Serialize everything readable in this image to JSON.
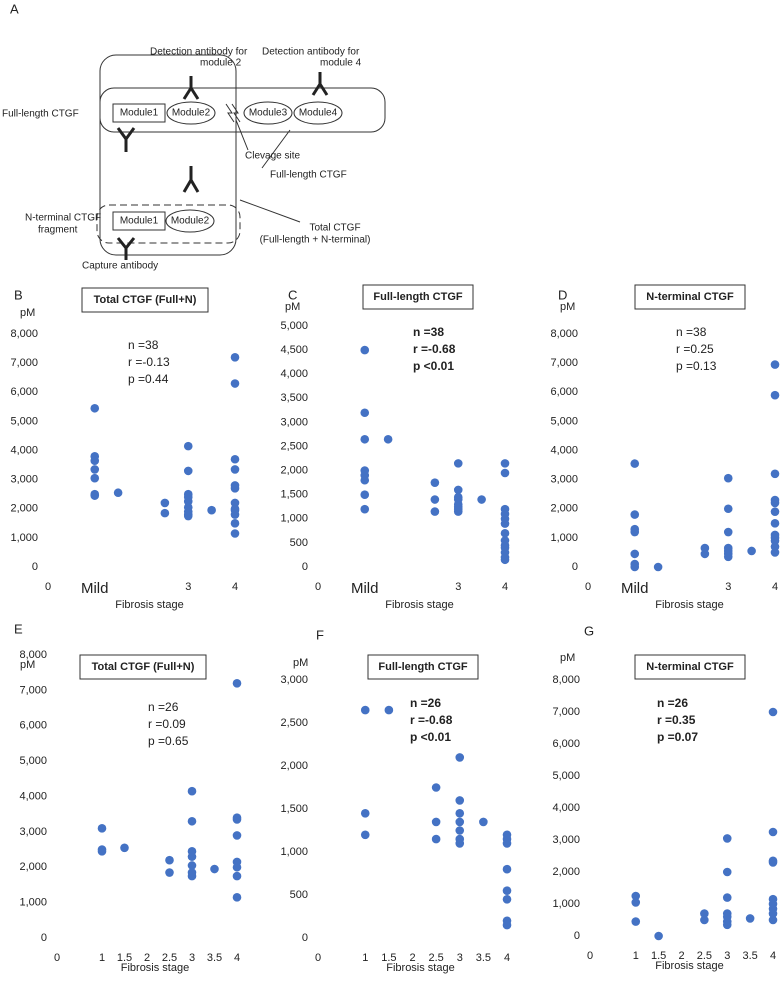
{
  "diagram": {
    "panel_label": "A",
    "detection_2": [
      "Detection antibody for",
      "module 2"
    ],
    "detection_4": [
      "Detection antibody for",
      "module 4"
    ],
    "full_length_left": "Full-length CTGF",
    "modules_full": [
      "Module1",
      "Module2",
      "Module3",
      "Module4"
    ],
    "clevage": "Clevage site",
    "full_length_right": "Full-length CTGF",
    "n_terminal": [
      "N-terminal CTGF",
      "fragment"
    ],
    "modules_n": [
      "Module1",
      "Module2"
    ],
    "total": [
      "Total CTGF",
      "(Full-length + N-terminal)"
    ],
    "capture": "Capture antibody"
  },
  "chart_data": [
    {
      "type": "scatter",
      "panel_label": "B",
      "title": "Total CTGF (Full+N)",
      "y_label": "pM",
      "x_label": "Fibrosis stage",
      "annotations": [
        "n =38",
        "r =-0.13",
        "p =0.44"
      ],
      "annotation_bold": false,
      "color": "#4472c4",
      "x": [
        1,
        1,
        1,
        1,
        1,
        1,
        1,
        1.5,
        2.5,
        2.5,
        3,
        3,
        3,
        3,
        3,
        3,
        3,
        3,
        3,
        3.5,
        4,
        4,
        4,
        4,
        4,
        4,
        4,
        4,
        4,
        4,
        4,
        4
      ],
      "values": [
        5450,
        3800,
        3650,
        3350,
        3050,
        2500,
        2450,
        2550,
        2200,
        1850,
        4150,
        3300,
        2500,
        2400,
        2250,
        2050,
        1900,
        1800,
        1750,
        1950,
        7200,
        6300,
        3700,
        3350,
        2800,
        2700,
        2200,
        2000,
        1950,
        1800,
        1500,
        1150
      ],
      "xlim": [
        0,
        4
      ],
      "xticks": [
        0,
        {
          "value": 1,
          "label": "Mild"
        },
        3,
        4
      ],
      "ylim": [
        0,
        8000
      ],
      "yticks": [
        0,
        {
          "value": 1000,
          "label": "1,000"
        },
        {
          "value": 2000,
          "label": "2,000"
        },
        {
          "value": 3000,
          "label": "3,000"
        },
        {
          "value": 4000,
          "label": "4,000"
        },
        {
          "value": 5000,
          "label": "5,000"
        },
        {
          "value": 6000,
          "label": "6,000"
        },
        {
          "value": 7000,
          "label": "7,000"
        },
        {
          "value": 8000,
          "label": "8,000"
        }
      ],
      "grid": false
    },
    {
      "type": "scatter",
      "panel_label": "C",
      "title": "Full-length CTGF",
      "y_label": "pM",
      "x_label": "Fibrosis stage",
      "annotations": [
        "n =38",
        "r =-0.68",
        "p <0.01"
      ],
      "annotation_bold": true,
      "color": "#4472c4",
      "x": [
        1,
        1,
        1,
        1,
        1,
        1,
        1,
        1,
        1.5,
        2.5,
        2.5,
        2.5,
        3,
        3,
        3,
        3,
        3,
        3,
        3,
        3,
        3.5,
        4,
        4,
        4,
        4,
        4,
        4,
        4,
        4,
        4,
        4,
        4,
        4,
        4
      ],
      "values": [
        4500,
        3200,
        2650,
        2000,
        1900,
        1800,
        1500,
        1200,
        2650,
        1750,
        1400,
        1150,
        2150,
        1600,
        1450,
        1400,
        1300,
        1250,
        1200,
        1150,
        1400,
        2150,
        1950,
        1200,
        1100,
        1000,
        900,
        700,
        550,
        450,
        400,
        300,
        200,
        150
      ],
      "xlim": [
        0,
        4
      ],
      "xticks": [
        0,
        {
          "value": 1,
          "label": "Mild"
        },
        3,
        4
      ],
      "ylim": [
        0,
        5000
      ],
      "yticks": [
        0,
        500,
        {
          "value": 1000,
          "label": "1,000"
        },
        {
          "value": 1500,
          "label": "1,500"
        },
        {
          "value": 2000,
          "label": "2,000"
        },
        {
          "value": 2500,
          "label": "2,500"
        },
        {
          "value": 3000,
          "label": "3,000"
        },
        {
          "value": 3500,
          "label": "3,500"
        },
        {
          "value": 4000,
          "label": "4,000"
        },
        {
          "value": 4500,
          "label": "4,500"
        },
        {
          "value": 5000,
          "label": "5,000"
        }
      ],
      "grid": false
    },
    {
      "type": "scatter",
      "panel_label": "D",
      "title": "N-terminal CTGF",
      "y_label": "pM",
      "x_label": "Fibrosis stage",
      "annotations": [
        "n =38",
        "r =0.25",
        "p =0.13"
      ],
      "annotation_bold": false,
      "color": "#4472c4",
      "x": [
        1,
        1,
        1,
        1,
        1,
        1,
        1,
        1.5,
        2.5,
        2.5,
        3,
        3,
        3,
        3,
        3,
        3,
        3,
        3.5,
        4,
        4,
        4,
        4,
        4,
        4,
        4,
        4,
        4,
        4,
        4,
        4
      ],
      "values": [
        3550,
        1800,
        1300,
        1200,
        450,
        100,
        0,
        0,
        650,
        450,
        3050,
        2000,
        1200,
        650,
        550,
        450,
        350,
        550,
        6950,
        5900,
        3200,
        2300,
        2200,
        1900,
        1500,
        1100,
        1000,
        900,
        700,
        500
      ],
      "xlim": [
        0,
        4
      ],
      "xticks": [
        0,
        {
          "value": 1,
          "label": "Mild"
        },
        3,
        4
      ],
      "ylim": [
        0,
        8000
      ],
      "yticks": [
        0,
        {
          "value": 1000,
          "label": "1,000"
        },
        {
          "value": 2000,
          "label": "2,000"
        },
        {
          "value": 3000,
          "label": "3,000"
        },
        {
          "value": 4000,
          "label": "4,000"
        },
        {
          "value": 5000,
          "label": "5,000"
        },
        {
          "value": 6000,
          "label": "6,000"
        },
        {
          "value": 7000,
          "label": "7,000"
        },
        {
          "value": 8000,
          "label": "8,000"
        }
      ],
      "grid": false
    },
    {
      "type": "scatter",
      "panel_label": "E",
      "title": "Total CTGF (Full+N)",
      "y_label": "pM",
      "x_label": "Fibrosis stage",
      "annotations": [
        "n =26",
        "r =0.09",
        "p =0.65"
      ],
      "annotation_bold": false,
      "color": "#4472c4",
      "x": [
        1,
        1,
        1,
        1.5,
        2.5,
        2.5,
        3,
        3,
        3,
        3,
        3,
        3,
        3,
        3.5,
        4,
        4,
        4,
        4,
        4,
        4,
        4,
        4
      ],
      "values": [
        3100,
        2500,
        2450,
        2550,
        2200,
        1850,
        4150,
        3300,
        2450,
        2300,
        2050,
        1850,
        1750,
        1950,
        7200,
        3400,
        3350,
        2900,
        2150,
        2000,
        1750,
        1150
      ],
      "xlim": [
        0,
        4
      ],
      "xticks": [
        0,
        1,
        1.5,
        2,
        2.5,
        3,
        3.5,
        4
      ],
      "ylim": [
        0,
        8000
      ],
      "yticks": [
        0,
        {
          "value": 1000,
          "label": "1,000"
        },
        {
          "value": 2000,
          "label": "2,000"
        },
        {
          "value": 3000,
          "label": "3,000"
        },
        {
          "value": 4000,
          "label": "4,000"
        },
        {
          "value": 5000,
          "label": "5,000"
        },
        {
          "value": 6000,
          "label": "6,000"
        },
        {
          "value": 7000,
          "label": "7,000"
        },
        {
          "value": 8000,
          "label": "8,000"
        }
      ],
      "grid": false
    },
    {
      "type": "scatter",
      "panel_label": "F",
      "title": "Full-length CTGF",
      "y_label": "pM",
      "x_label": "Fibrosis stage",
      "annotations": [
        "n =26",
        "r =-0.68",
        "p <0.01"
      ],
      "annotation_bold": true,
      "color": "#4472c4",
      "x": [
        1,
        1,
        1,
        1.5,
        2.5,
        2.5,
        2.5,
        3,
        3,
        3,
        3,
        3,
        3,
        3,
        3.5,
        4,
        4,
        4,
        4,
        4,
        4,
        4,
        4
      ],
      "values": [
        2650,
        1450,
        1200,
        2650,
        1750,
        1350,
        1150,
        2100,
        1600,
        1450,
        1350,
        1250,
        1150,
        1100,
        1350,
        1200,
        1150,
        1100,
        800,
        550,
        450,
        200,
        150
      ],
      "xlim": [
        0,
        4
      ],
      "xticks": [
        0,
        1,
        1.5,
        2,
        2.5,
        3,
        3.5,
        4
      ],
      "ylim": [
        0,
        3000
      ],
      "yticks": [
        0,
        500,
        {
          "value": 1000,
          "label": "1,000"
        },
        {
          "value": 1500,
          "label": "1,500"
        },
        {
          "value": 2000,
          "label": "2,000"
        },
        {
          "value": 2500,
          "label": "2,500"
        },
        {
          "value": 3000,
          "label": "3,000"
        }
      ],
      "grid": false
    },
    {
      "type": "scatter",
      "panel_label": "G",
      "title": "N-terminal CTGF",
      "y_label": "pM",
      "x_label": "Fibrosis stage",
      "annotations": [
        "n =26",
        "r =0.35",
        "p =0.07"
      ],
      "annotation_bold": true,
      "color": "#4472c4",
      "x": [
        1,
        1,
        1,
        1.5,
        2.5,
        2.5,
        3,
        3,
        3,
        3,
        3,
        3,
        3,
        3.5,
        4,
        4,
        4,
        4,
        4,
        4,
        4,
        4,
        4
      ],
      "values": [
        1250,
        1050,
        450,
        0,
        700,
        500,
        3050,
        2000,
        1200,
        700,
        600,
        450,
        350,
        550,
        7000,
        3250,
        2350,
        2300,
        1150,
        1000,
        850,
        700,
        500
      ],
      "xlim": [
        0,
        4
      ],
      "xticks": [
        0,
        1,
        1.5,
        2,
        2.5,
        3,
        3.5,
        4
      ],
      "ylim": [
        0,
        8000
      ],
      "yticks": [
        0,
        {
          "value": 1000,
          "label": "1,000"
        },
        {
          "value": 2000,
          "label": "2,000"
        },
        {
          "value": 3000,
          "label": "3,000"
        },
        {
          "value": 4000,
          "label": "4,000"
        },
        {
          "value": 5000,
          "label": "5,000"
        },
        {
          "value": 6000,
          "label": "6,000"
        },
        {
          "value": 7000,
          "label": "7,000"
        },
        {
          "value": 8000,
          "label": "8,000"
        }
      ],
      "grid": false
    }
  ]
}
